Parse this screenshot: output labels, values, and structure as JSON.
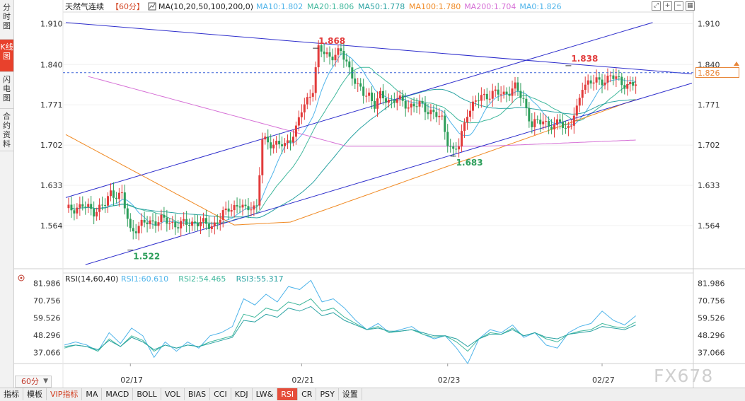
{
  "left_tabs": [
    {
      "label": "分时图",
      "active": false
    },
    {
      "label": "K线图",
      "active": true
    },
    {
      "label": "闪电图",
      "active": false
    },
    {
      "label": "合约资料",
      "active": false
    }
  ],
  "header": {
    "instrument": "天然气连续",
    "period_tag": "【60分】",
    "ma_title": "MA(10,20,50,100,200,0)",
    "ma_values": [
      {
        "text": "MA10:1.802",
        "color": "#4fb4ea"
      },
      {
        "text": "MA20:1.806",
        "color": "#40b89c"
      },
      {
        "text": "MA50:1.778",
        "color": "#2ba3a3"
      },
      {
        "text": "MA100:1.780",
        "color": "#f08a24"
      },
      {
        "text": "MA200:1.704",
        "color": "#d670d6"
      },
      {
        "text": "MA0:1.826",
        "color": "#4fb4ea"
      }
    ]
  },
  "rsi_header": {
    "title": "RSI(14,60,40)",
    "values": [
      {
        "text": "RSI1:60.610",
        "color": "#4fb4ea"
      },
      {
        "text": "RSI2:54.465",
        "color": "#40b89c"
      },
      {
        "text": "RSI3:55.317",
        "color": "#2ba3a3"
      }
    ]
  },
  "current_price": "1.826",
  "period_selector": "60分",
  "watermark": "FX678",
  "toolbar": [
    "指标",
    "模板",
    "VIP指标",
    "MA",
    "MACD",
    "BOLL",
    "VOL",
    "BIAS",
    "CCI",
    "KDJ",
    "LW&",
    "RSI",
    "CR",
    "PSY",
    "设置"
  ],
  "toolbar_active": "RSI",
  "colors": {
    "up": "#e23b3b",
    "down": "#2d9e5a",
    "trend": "#2e2ecc",
    "ma10": "#4fb4ea",
    "ma20": "#40b89c",
    "ma50": "#2ba3a3",
    "ma100": "#f08a24",
    "ma200": "#d670d6"
  },
  "chart_data": [
    {
      "type": "candlestick",
      "title": "天然气连续【60分】",
      "y_ticks": [
        "1.910",
        "1.840",
        "1.771",
        "1.702",
        "1.633",
        "1.564"
      ],
      "ylim": [
        1.49,
        1.93
      ],
      "x_ticks": [
        "02/17",
        "02/21",
        "02/23",
        "02/27"
      ],
      "annotations": [
        {
          "label": "1.868",
          "price": 1.868,
          "bar": 89,
          "kind": "high"
        },
        {
          "label": "1.838",
          "price": 1.838,
          "bar": 179,
          "kind": "high"
        },
        {
          "label": "1.683",
          "price": 1.683,
          "bar": 138,
          "kind": "low"
        },
        {
          "label": "1.522",
          "price": 1.522,
          "bar": 23,
          "kind": "low"
        }
      ],
      "last_price_line": 1.826,
      "trendlines": [
        {
          "name": "upper-channel",
          "from": {
            "bar": 0,
            "price": 1.912
          },
          "to": {
            "bar": 223,
            "price": 1.824
          }
        },
        {
          "name": "channel-top",
          "from": {
            "bar": 0,
            "price": 1.612
          },
          "to": {
            "bar": 209,
            "price": 1.912
          }
        },
        {
          "name": "channel-bottom",
          "from": {
            "bar": 7,
            "price": 1.497
          },
          "to": {
            "bar": 223,
            "price": 1.808
          }
        }
      ],
      "close_path": [
        [
          0,
          1.59
        ],
        [
          6,
          1.598
        ],
        [
          10,
          1.589
        ],
        [
          14,
          1.6
        ],
        [
          16,
          1.62
        ],
        [
          20,
          1.615
        ],
        [
          23,
          1.555
        ],
        [
          28,
          1.568
        ],
        [
          34,
          1.574
        ],
        [
          40,
          1.565
        ],
        [
          46,
          1.57
        ],
        [
          52,
          1.564
        ],
        [
          55,
          1.575
        ],
        [
          58,
          1.595
        ],
        [
          62,
          1.598
        ],
        [
          64,
          1.59
        ],
        [
          66,
          1.6
        ],
        [
          68,
          1.595
        ],
        [
          70,
          1.71
        ],
        [
          74,
          1.705
        ],
        [
          78,
          1.7
        ],
        [
          82,
          1.73
        ],
        [
          84,
          1.76
        ],
        [
          88,
          1.8
        ],
        [
          90,
          1.865
        ],
        [
          94,
          1.855
        ],
        [
          98,
          1.86
        ],
        [
          100,
          1.845
        ],
        [
          104,
          1.8
        ],
        [
          106,
          1.79
        ],
        [
          108,
          1.79
        ],
        [
          110,
          1.77
        ],
        [
          112,
          1.785
        ],
        [
          116,
          1.778
        ],
        [
          118,
          1.78
        ],
        [
          122,
          1.77
        ],
        [
          126,
          1.77
        ],
        [
          130,
          1.76
        ],
        [
          134,
          1.745
        ],
        [
          136,
          1.71
        ],
        [
          138,
          1.69
        ],
        [
          140,
          1.7
        ],
        [
          143,
          1.76
        ],
        [
          148,
          1.785
        ],
        [
          152,
          1.79
        ],
        [
          156,
          1.79
        ],
        [
          160,
          1.8
        ],
        [
          163,
          1.78
        ],
        [
          166,
          1.735
        ],
        [
          170,
          1.745
        ],
        [
          174,
          1.73
        ],
        [
          176,
          1.745
        ],
        [
          178,
          1.73
        ],
        [
          180,
          1.74
        ],
        [
          182,
          1.76
        ],
        [
          184,
          1.805
        ],
        [
          186,
          1.81
        ],
        [
          190,
          1.81
        ],
        [
          194,
          1.82
        ],
        [
          198,
          1.81
        ],
        [
          200,
          1.805
        ],
        [
          203,
          1.805
        ]
      ]
    },
    {
      "type": "line",
      "title": "RSI(14,60,40)",
      "y_ticks": [
        "81.986",
        "70.756",
        "59.526",
        "48.296",
        "37.066"
      ],
      "ylim": [
        30,
        86
      ],
      "series": [
        {
          "name": "RSI1",
          "values": [
            42,
            44,
            42,
            38,
            50,
            43,
            53,
            48,
            34,
            44,
            38,
            44,
            40,
            48,
            50,
            54,
            72,
            68,
            75,
            70,
            80,
            78,
            84,
            70,
            72,
            66,
            58,
            52,
            56,
            50,
            52,
            54,
            49,
            46,
            48,
            40,
            30,
            46,
            52,
            50,
            55,
            47,
            50,
            42,
            40,
            50,
            54,
            56,
            64,
            58,
            55,
            61
          ]
        },
        {
          "name": "RSI2",
          "values": [
            40,
            42,
            41,
            38,
            46,
            41,
            48,
            45,
            38,
            42,
            40,
            42,
            41,
            44,
            46,
            48,
            62,
            60,
            66,
            64,
            70,
            68,
            72,
            64,
            66,
            60,
            56,
            52,
            54,
            50,
            51,
            52,
            49,
            47,
            48,
            44,
            38,
            46,
            50,
            49,
            53,
            48,
            50,
            46,
            44,
            49,
            51,
            52,
            56,
            54,
            53,
            57
          ]
        },
        {
          "name": "RSI3",
          "values": [
            41,
            42,
            41,
            39,
            45,
            41,
            47,
            44,
            39,
            42,
            40,
            42,
            41,
            43,
            45,
            47,
            58,
            57,
            62,
            60,
            66,
            64,
            67,
            61,
            63,
            58,
            55,
            52,
            53,
            51,
            51,
            52,
            50,
            48,
            48,
            46,
            41,
            46,
            49,
            49,
            52,
            48,
            50,
            47,
            46,
            49,
            50,
            51,
            54,
            53,
            52,
            55
          ]
        }
      ]
    }
  ]
}
